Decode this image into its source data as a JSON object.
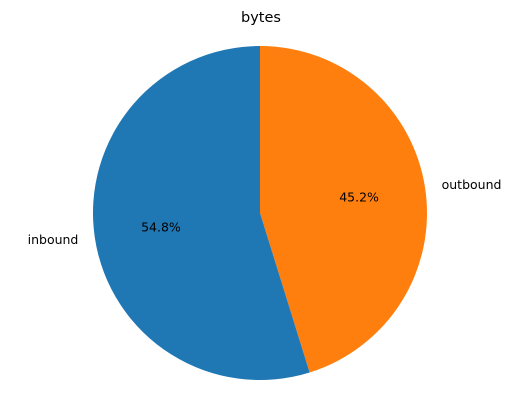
{
  "chart_data": {
    "type": "pie",
    "title": "bytes",
    "start_angle": "top (12 o'clock)",
    "direction": "clockwise",
    "slices": [
      {
        "label": "outbound",
        "value": 45.2,
        "percent_label": "45.2%",
        "color": "#ff7f0e"
      },
      {
        "label": "inbound",
        "value": 54.8,
        "percent_label": "54.8%",
        "color": "#1f77b4"
      }
    ]
  }
}
